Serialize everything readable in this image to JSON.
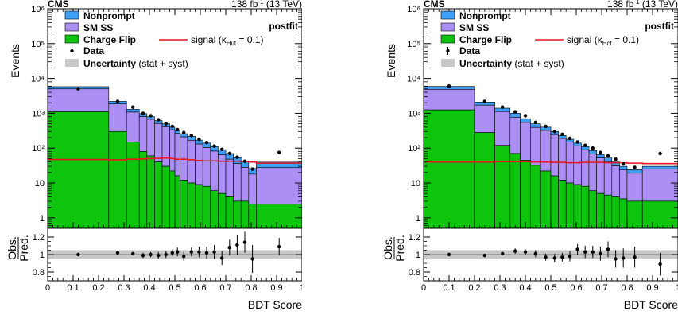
{
  "colors": {
    "nonprompt": "#3c9ef5",
    "sm_ss": "#ab8ff5",
    "charge_flip": "#0ec50e",
    "signal": "#e8141e",
    "uncertainty": "#c8c8c8",
    "data": "#000000"
  },
  "chart_data": [
    {
      "type": "bar",
      "experiment": "CMS",
      "lumi": "138 fb",
      "lumi_sup": "-1",
      "lumi_tail": " (13 TeV)",
      "fit_label": "postfit",
      "xlabel": "BDT Score",
      "ylabel": "Events",
      "ratio_ylabel_top": "Obs.",
      "ratio_ylabel_bottom": "Pred.",
      "xlim": [
        0,
        1
      ],
      "ylim": [
        0.5,
        1000000
      ],
      "yscale": "log",
      "ratio_ylim": [
        0.7,
        1.3
      ],
      "legend": {
        "nonprompt": "Nonprompt",
        "sm_ss": "SM SS",
        "charge_flip": "Charge Flip",
        "data": "Data",
        "uncertainty_bold": "Uncertainty",
        "uncertainty_rest": " (stat + syst)",
        "signal_prefix": "signal (",
        "signal_kappa": "κ",
        "signal_sub": "Hut",
        "signal_suffix": " = 0.1)"
      },
      "x_ticks": [
        "0",
        "0.1",
        "0.2",
        "0.3",
        "0.4",
        "0.5",
        "0.6",
        "0.7",
        "0.8",
        "0.9",
        "1"
      ],
      "y_ticks": [
        "1",
        "10",
        "10²",
        "10³",
        "10⁴",
        "10⁵",
        "10⁶"
      ],
      "ratio_ticks": [
        "0.8",
        "1",
        "1.2"
      ],
      "bins": [
        0,
        0.24,
        0.31,
        0.36,
        0.39,
        0.42,
        0.45,
        0.48,
        0.5,
        0.52,
        0.55,
        0.58,
        0.61,
        0.64,
        0.67,
        0.7,
        0.73,
        0.76,
        0.79,
        0.82,
        1.0
      ],
      "charge_flip": [
        1100,
        300,
        150,
        80,
        60,
        40,
        30,
        22,
        16,
        12,
        10,
        9,
        8,
        6,
        5,
        4,
        3,
        3,
        2.5,
        2.5
      ],
      "sm_ss": [
        3900,
        1550,
        930,
        720,
        610,
        470,
        380,
        315,
        248,
        198,
        158,
        122,
        96,
        76,
        60,
        44,
        33,
        25,
        15.5,
        25
      ],
      "nonprompt": [
        800,
        350,
        220,
        180,
        130,
        110,
        90,
        63,
        56,
        50,
        52,
        39,
        36,
        28,
        25,
        22,
        17,
        14,
        8,
        12
      ],
      "signal": [
        47,
        46,
        48,
        49,
        50,
        51,
        52,
        50,
        48,
        48,
        46,
        44,
        43,
        43,
        42,
        42,
        42,
        41,
        40,
        37
      ],
      "data": {
        "x": [
          0.12,
          0.275,
          0.335,
          0.375,
          0.405,
          0.435,
          0.465,
          0.49,
          0.51,
          0.535,
          0.565,
          0.595,
          0.625,
          0.655,
          0.685,
          0.715,
          0.745,
          0.775,
          0.805,
          0.91
        ],
        "y": [
          5000,
          2200,
          1500,
          1000,
          850,
          650,
          500,
          420,
          340,
          280,
          230,
          180,
          145,
          115,
          92,
          70,
          55,
          42,
          25,
          75
        ]
      },
      "ratio": {
        "x": [
          0.12,
          0.275,
          0.335,
          0.375,
          0.405,
          0.435,
          0.465,
          0.49,
          0.51,
          0.535,
          0.565,
          0.595,
          0.625,
          0.655,
          0.685,
          0.715,
          0.745,
          0.775,
          0.805,
          0.91
        ],
        "y": [
          1.0,
          1.02,
          1.01,
          0.99,
          1.0,
          0.99,
          1.0,
          1.02,
          1.03,
          0.98,
          1.03,
          1.03,
          1.02,
          1.03,
          0.96,
          1.08,
          1.11,
          1.14,
          0.95,
          1.09
        ],
        "err": [
          0.01,
          0.02,
          0.02,
          0.03,
          0.03,
          0.04,
          0.04,
          0.04,
          0.05,
          0.05,
          0.05,
          0.06,
          0.07,
          0.08,
          0.08,
          0.09,
          0.11,
          0.12,
          0.16,
          0.1
        ]
      },
      "unc_ratio": 0.05
    },
    {
      "type": "bar",
      "experiment": "CMS",
      "lumi": "138 fb",
      "lumi_sup": "-1",
      "lumi_tail": " (13 TeV)",
      "fit_label": "postfit",
      "xlabel": "BDT Score",
      "ylabel": "Events",
      "ratio_ylabel_top": "Obs.",
      "ratio_ylabel_bottom": "Pred.",
      "xlim": [
        0,
        1
      ],
      "ylim": [
        0.5,
        1000000
      ],
      "yscale": "log",
      "ratio_ylim": [
        0.7,
        1.3
      ],
      "legend": {
        "nonprompt": "Nonprompt",
        "sm_ss": "SM SS",
        "charge_flip": "Charge Flip",
        "data": "Data",
        "uncertainty_bold": "Uncertainty",
        "uncertainty_rest": " (stat + syst)",
        "signal_prefix": "signal (",
        "signal_kappa": "κ",
        "signal_sub": "Hct",
        "signal_suffix": " = 0.1)"
      },
      "x_ticks": [
        "0",
        "0.1",
        "0.2",
        "0.3",
        "0.4",
        "0.5",
        "0.6",
        "0.7",
        "0.8",
        "0.9",
        "1"
      ],
      "y_ticks": [
        "1",
        "10",
        "10²",
        "10³",
        "10⁴",
        "10⁵",
        "10⁶"
      ],
      "ratio_ticks": [
        "0.8",
        "1",
        "1.2"
      ],
      "bins": [
        0,
        0.2,
        0.28,
        0.34,
        0.38,
        0.42,
        0.46,
        0.5,
        0.53,
        0.56,
        0.59,
        0.62,
        0.65,
        0.68,
        0.71,
        0.74,
        0.77,
        0.8,
        0.86,
        1.0
      ],
      "charge_flip": [
        1250,
        280,
        120,
        70,
        45,
        32,
        22,
        16,
        12,
        10,
        9,
        8,
        6,
        5,
        4.5,
        4,
        3.5,
        3,
        3
      ],
      "sm_ss": [
        3600,
        1430,
        1000,
        700,
        500,
        360,
        300,
        228,
        178,
        139,
        107,
        82,
        62,
        47,
        36.5,
        27,
        20.5,
        16,
        22
      ],
      "nonprompt": [
        1050,
        390,
        280,
        230,
        155,
        108,
        78,
        56,
        40,
        31,
        24,
        20,
        17,
        13,
        11,
        9,
        6,
        5,
        5
      ],
      "signal": [
        40,
        40,
        41,
        41,
        41,
        40,
        40,
        39,
        39,
        38,
        38,
        39,
        39,
        39,
        38,
        38,
        38,
        37,
        36
      ],
      "data": {
        "x": [
          0.1,
          0.24,
          0.31,
          0.36,
          0.4,
          0.44,
          0.48,
          0.515,
          0.545,
          0.575,
          0.605,
          0.635,
          0.665,
          0.695,
          0.725,
          0.755,
          0.785,
          0.83,
          0.93
        ],
        "y": [
          6000,
          2200,
          1500,
          1100,
          850,
          550,
          420,
          300,
          250,
          190,
          150,
          120,
          100,
          75,
          60,
          48,
          35,
          28,
          70
        ]
      },
      "ratio": {
        "x": [
          0.1,
          0.24,
          0.31,
          0.36,
          0.4,
          0.44,
          0.48,
          0.515,
          0.545,
          0.575,
          0.605,
          0.635,
          0.665,
          0.695,
          0.725,
          0.755,
          0.785,
          0.83,
          0.93
        ],
        "y": [
          1.0,
          0.99,
          1.01,
          1.04,
          1.03,
          1.01,
          0.97,
          0.96,
          0.97,
          0.98,
          1.06,
          1.03,
          1.03,
          1.01,
          1.06,
          0.95,
          0.96,
          0.97,
          0.89
        ],
        "err": [
          0.01,
          0.02,
          0.02,
          0.03,
          0.03,
          0.04,
          0.04,
          0.05,
          0.05,
          0.06,
          0.06,
          0.07,
          0.07,
          0.08,
          0.09,
          0.1,
          0.11,
          0.12,
          0.13
        ]
      },
      "unc_ratio": 0.05
    }
  ]
}
